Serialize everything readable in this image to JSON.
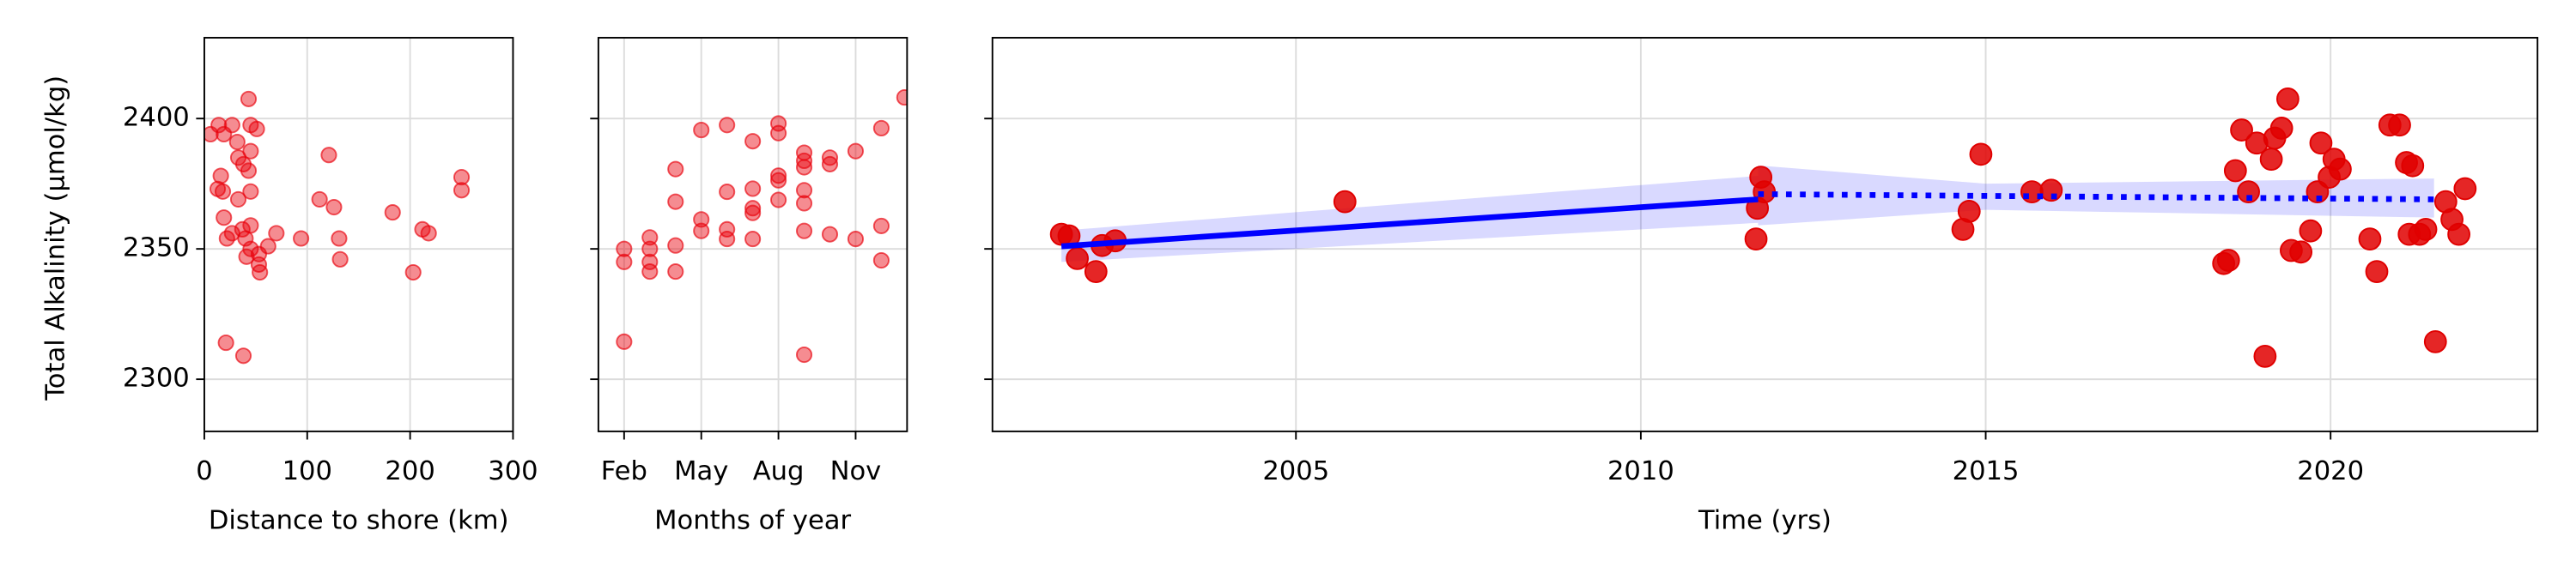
{
  "chart_data": [
    {
      "type": "scatter",
      "xlabel": "Distance to shore (km)",
      "ylabel": "Total Alkalinity (μmol/kg)",
      "xlim": [
        0,
        300
      ],
      "xticks": [
        0,
        100,
        200,
        300
      ],
      "ylim": [
        2280,
        2431
      ],
      "yticks": [
        2300,
        2350,
        2400
      ],
      "ytick_labels": true,
      "grid": true,
      "color": "#e8000b",
      "alpha": 0.45,
      "marker_size": 4.5,
      "x": [
        14,
        6,
        27,
        45,
        51,
        43,
        19,
        16,
        13,
        18,
        19,
        22,
        32,
        33,
        38,
        43,
        45,
        33,
        45,
        27,
        37,
        45,
        40,
        45,
        41,
        53,
        53,
        54,
        62,
        70,
        94,
        112,
        121,
        126,
        131,
        132,
        183,
        203,
        212,
        218,
        250,
        250,
        21,
        38
      ],
      "values": [
        2397.5,
        2394,
        2397.5,
        2397.5,
        2396,
        2407.5,
        2394,
        2378,
        2373,
        2372,
        2362,
        2354,
        2391,
        2385,
        2382.5,
        2380,
        2387.5,
        2369,
        2372,
        2356,
        2357.5,
        2359,
        2354,
        2350,
        2347,
        2348,
        2344,
        2341,
        2351,
        2356,
        2354,
        2369,
        2386,
        2366,
        2354,
        2346,
        2364,
        2341,
        2357.5,
        2356,
        2372.5,
        2377.5,
        2314,
        2309
      ]
    },
    {
      "type": "scatter",
      "xlabel": "Months of year",
      "xlim": [
        1,
        13
      ],
      "xticks": [
        {
          "value": 2,
          "label": "Feb"
        },
        {
          "value": 5,
          "label": "May"
        },
        {
          "value": 8,
          "label": "Aug"
        },
        {
          "value": 11,
          "label": "Nov"
        }
      ],
      "ylim": [
        2280,
        2431
      ],
      "yticks": [
        2300,
        2350,
        2400
      ],
      "ytick_labels": false,
      "grid": true,
      "color": "#e8000b",
      "alpha": 0.45,
      "marker_size": 4.5,
      "x": [
        2,
        2,
        2,
        3,
        3,
        3,
        3,
        4,
        4,
        4,
        4,
        5,
        5,
        5,
        6,
        6,
        6,
        6,
        7,
        7,
        7,
        7,
        7,
        8,
        8,
        8,
        8,
        8,
        9,
        9,
        9,
        9,
        9,
        9,
        9,
        10,
        10,
        10,
        11,
        11,
        12,
        12,
        12,
        12.9
      ],
      "values": [
        2350,
        2345,
        2314.4,
        2354.4,
        2350,
        2345,
        2341.3,
        2380.6,
        2368.1,
        2351.3,
        2341.3,
        2395.6,
        2361.3,
        2356.9,
        2397.5,
        2371.9,
        2357.5,
        2353.8,
        2391.3,
        2373.1,
        2365.6,
        2363.8,
        2353.8,
        2398.1,
        2394.4,
        2378.1,
        2376.3,
        2368.8,
        2386.9,
        2383.8,
        2381.3,
        2372.5,
        2367.5,
        2356.9,
        2309.4,
        2385,
        2382.5,
        2355.6,
        2387.5,
        2353.8,
        2396.3,
        2358.8,
        2345.6,
        2408.1
      ]
    },
    {
      "type": "scatter",
      "xlabel": "Time (yrs)",
      "xlim": [
        2000.6,
        2023
      ],
      "xticks": [
        2005,
        2010,
        2015,
        2020
      ],
      "ylim": [
        2280,
        2431
      ],
      "yticks": [
        2300,
        2350,
        2400
      ],
      "ytick_labels": false,
      "grid": true,
      "color": "#e00000",
      "alpha": 0.85,
      "marker_size": 6.5,
      "x": [
        2001.6,
        2001.71,
        2001.83,
        2002.1,
        2002.19,
        2002.38,
        2005.71,
        2011.67,
        2011.69,
        2011.74,
        2011.79,
        2014.67,
        2014.76,
        2014.93,
        2015.67,
        2015.95,
        2018.45,
        2018.52,
        2018.62,
        2018.71,
        2018.81,
        2018.93,
        2019.05,
        2019.14,
        2019.19,
        2019.29,
        2019.38,
        2019.43,
        2019.57,
        2019.71,
        2019.81,
        2019.86,
        2019.98,
        2020.05,
        2020.14,
        2020.57,
        2020.67,
        2020.86,
        2021.0,
        2021.1,
        2021.19,
        2021.14,
        2021.29,
        2021.38,
        2021.52,
        2021.67,
        2021.76,
        2021.86,
        2021.95
      ],
      "values": [
        2355.6,
        2355,
        2346.3,
        2341.3,
        2351.3,
        2353.1,
        2368.1,
        2353.8,
        2365.6,
        2377.5,
        2371.9,
        2357.5,
        2364.4,
        2386.3,
        2371.9,
        2372.5,
        2344.4,
        2345.6,
        2380,
        2395.6,
        2371.9,
        2390.6,
        2308.8,
        2384.4,
        2392.5,
        2396.3,
        2407.5,
        2349.4,
        2348.8,
        2356.9,
        2371.9,
        2390.6,
        2377.5,
        2384.4,
        2380.6,
        2353.8,
        2341.3,
        2397.5,
        2397.5,
        2383.1,
        2381.9,
        2355.6,
        2355.6,
        2357.5,
        2314.4,
        2368.1,
        2361.3,
        2355.6,
        2373.1
      ],
      "bands": [
        {
          "color": "#0000ff",
          "alpha": 0.15,
          "x": [
            2001.6,
            2011.7
          ],
          "lower": [
            2345,
            2360
          ],
          "upper": [
            2357,
            2378
          ]
        },
        {
          "color": "#0000ff",
          "alpha": 0.15,
          "x": [
            2011.7,
            2015,
            2021.5
          ],
          "lower": [
            2359,
            2365,
            2362
          ],
          "upper": [
            2382,
            2375,
            2377
          ]
        }
      ],
      "lines": [
        {
          "color": "#0000ff",
          "style": "solid",
          "x": [
            2001.6,
            2011.7
          ],
          "values": [
            2351,
            2369
          ]
        },
        {
          "color": "#0000ff",
          "style": "dotted",
          "x": [
            2011.7,
            2021.5
          ],
          "values": [
            2371,
            2369
          ]
        }
      ]
    }
  ]
}
